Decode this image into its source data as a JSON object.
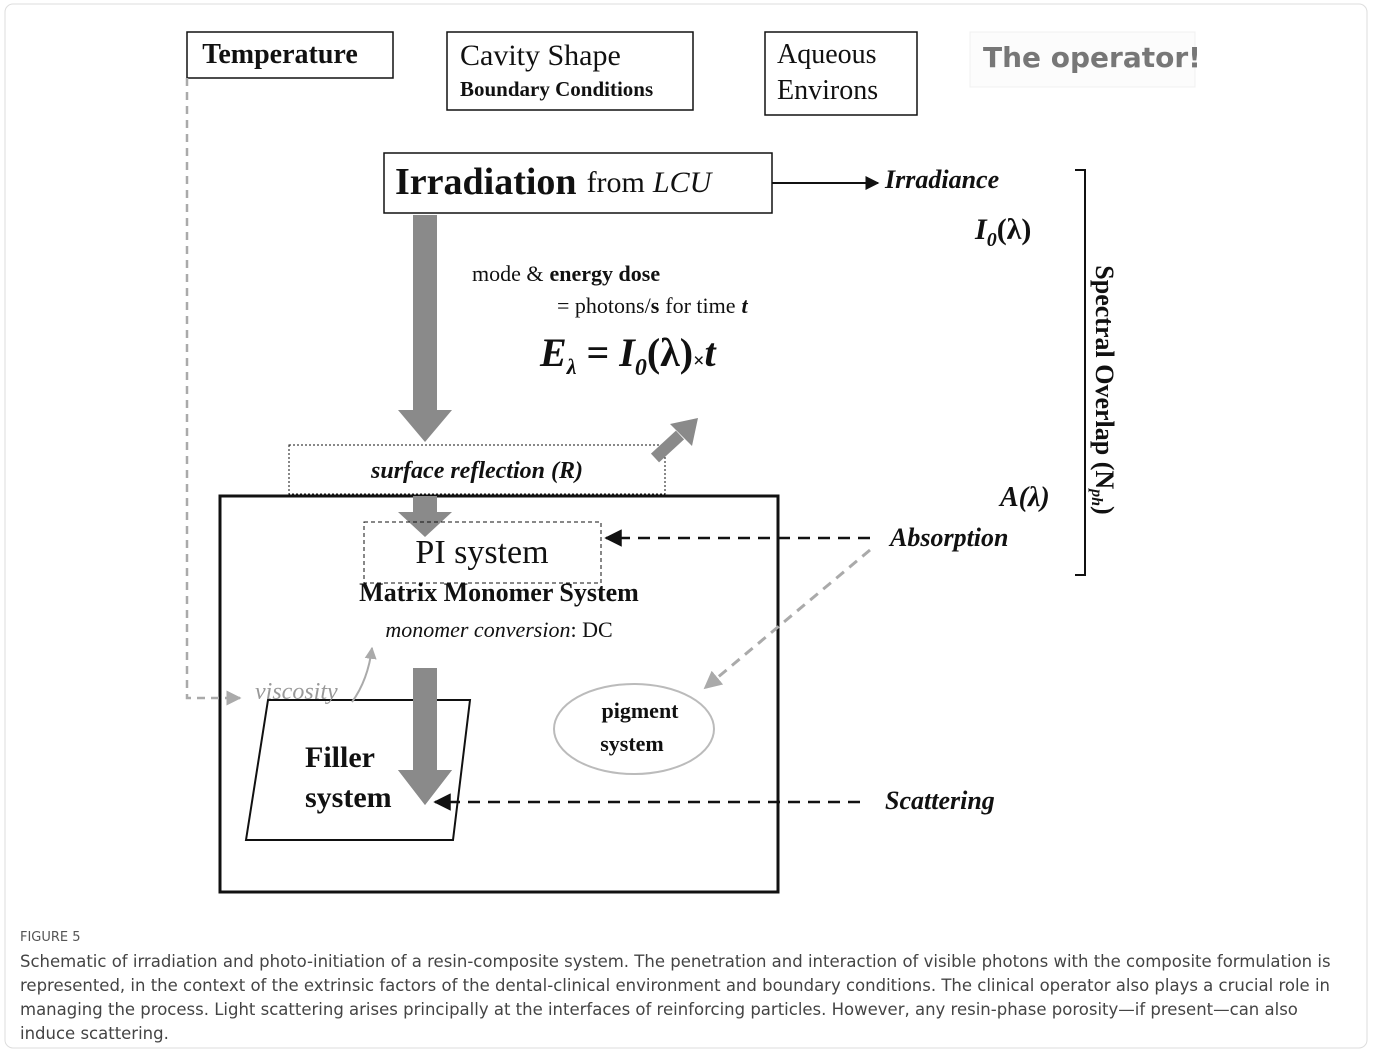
{
  "figure": {
    "factors": {
      "temperature": "Temperature",
      "cavity_shape": "Cavity Shape",
      "boundary_conditions": "Boundary Conditions",
      "aqueous": [
        "Aqueous",
        "Environs"
      ],
      "operator": "The operator!"
    },
    "irradiation": {
      "title": "Irradiation",
      "from": "from",
      "source": "LCU"
    },
    "irradiance": "Irradiance",
    "intensity": {
      "symbol": "I",
      "subscript": "0",
      "argument": "(λ)"
    },
    "dose": {
      "mode": "mode &",
      "energy_dose": "energy dose",
      "equals": "= photons/",
      "per": "s",
      "for_time": "for time",
      "t": "t"
    },
    "equation": {
      "lhs": "E",
      "lhs_sub": "λ",
      "eq": "=",
      "symbol": "I",
      "subscript": "0",
      "argument": "(λ)",
      "times": "×",
      "t": "t"
    },
    "surface_reflection": "surface reflection (R)",
    "pi_system": "PI system",
    "matrix": "Matrix Monomer System",
    "conversion": {
      "label": "monomer conversion",
      "suffix": ": DC"
    },
    "viscosity": "viscosity",
    "pigment": [
      "pigment",
      "system"
    ],
    "filler": [
      "Filler",
      "system"
    ],
    "absorption": "Absorption",
    "absorbance": "A(λ)",
    "scattering": "Scattering",
    "spectral_overlap": {
      "text": "Spectral Overlap (N",
      "subscript": "ph",
      "close": ")"
    }
  },
  "caption": {
    "label": "FIGURE 5",
    "text": "Schematic of irradiation and photo-initiation of a resin-composite system. The penetration and interaction of visible photons with the composite formulation is represented, in the context of the extrinsic factors of the dental-clinical environment and boundary conditions. The clinical operator also plays a crucial role in managing the process. Light scattering arises principally at the interfaces of reinforcing particles. However, any resin-phase porosity—if present—can also induce scattering."
  }
}
